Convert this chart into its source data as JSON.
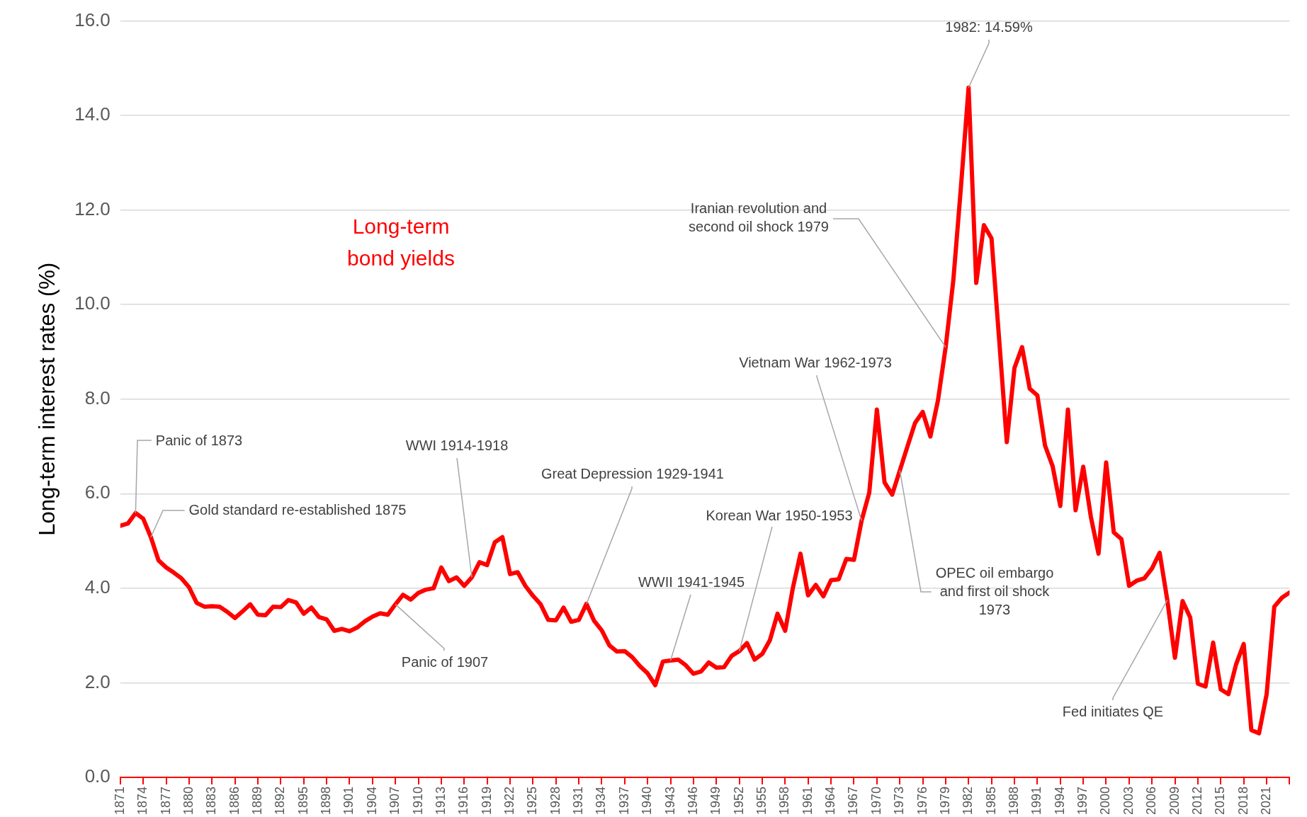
{
  "chart_data": {
    "type": "line",
    "ylabel": "Long-term interest rates (%)",
    "xlim": [
      1871,
      2024
    ],
    "xticks": [
      1871,
      1874,
      1877,
      1880,
      1883,
      1886,
      1889,
      1892,
      1895,
      1898,
      1901,
      1904,
      1907,
      1910,
      1913,
      1916,
      1919,
      1922,
      1925,
      1928,
      1931,
      1934,
      1937,
      1940,
      1943,
      1946,
      1949,
      1952,
      1955,
      1958,
      1961,
      1964,
      1967,
      1970,
      1973,
      1976,
      1979,
      1982,
      1985,
      1988,
      1991,
      1994,
      1997,
      2000,
      2003,
      2006,
      2009,
      2012,
      2015,
      2018,
      2021,
      {
        "value": 2024,
        "label": null
      }
    ],
    "ylim": [
      0,
      16
    ],
    "yticks": [
      {
        "value": 0,
        "label": "0.0"
      },
      {
        "value": 2,
        "label": "2.0"
      },
      {
        "value": 4,
        "label": "4.0"
      },
      {
        "value": 6,
        "label": "6.0"
      },
      {
        "value": 8,
        "label": "8.0"
      },
      {
        "value": 10,
        "label": "10.0"
      },
      {
        "value": 12,
        "label": "12.0"
      },
      {
        "value": 14,
        "label": "14.0"
      },
      {
        "value": 16,
        "label": "16.0"
      }
    ],
    "grid": "y",
    "marker": "none",
    "line_style": "solid",
    "series": [
      {
        "name": "Long-term bond yields",
        "color": "#ff0000",
        "x": [
          1871,
          1872,
          1873,
          1874,
          1875,
          1876,
          1877,
          1878,
          1879,
          1880,
          1881,
          1882,
          1883,
          1884,
          1885,
          1886,
          1887,
          1888,
          1889,
          1890,
          1891,
          1892,
          1893,
          1894,
          1895,
          1896,
          1897,
          1898,
          1899,
          1900,
          1901,
          1902,
          1903,
          1904,
          1905,
          1906,
          1907,
          1908,
          1909,
          1910,
          1911,
          1912,
          1913,
          1914,
          1915,
          1916,
          1917,
          1918,
          1919,
          1920,
          1921,
          1922,
          1923,
          1924,
          1925,
          1926,
          1927,
          1928,
          1929,
          1930,
          1931,
          1932,
          1933,
          1934,
          1935,
          1936,
          1937,
          1938,
          1939,
          1940,
          1941,
          1942,
          1943,
          1944,
          1945,
          1946,
          1947,
          1948,
          1949,
          1950,
          1951,
          1952,
          1953,
          1954,
          1955,
          1956,
          1957,
          1958,
          1959,
          1960,
          1961,
          1962,
          1963,
          1964,
          1965,
          1966,
          1967,
          1968,
          1969,
          1970,
          1971,
          1972,
          1973,
          1974,
          1975,
          1976,
          1977,
          1978,
          1979,
          1980,
          1981,
          1982,
          1983,
          1984,
          1985,
          1986,
          1987,
          1988,
          1989,
          1990,
          1991,
          1992,
          1993,
          1994,
          1995,
          1996,
          1997,
          1998,
          1999,
          2000,
          2001,
          2002,
          2003,
          2004,
          2005,
          2006,
          2007,
          2008,
          2009,
          2010,
          2011,
          2012,
          2013,
          2014,
          2015,
          2016,
          2017,
          2018,
          2019,
          2020,
          2021,
          2022,
          2023,
          2024
        ],
        "values": [
          5.32,
          5.37,
          5.59,
          5.47,
          5.08,
          4.59,
          4.44,
          4.33,
          4.21,
          4.02,
          3.69,
          3.61,
          3.62,
          3.61,
          3.5,
          3.37,
          3.51,
          3.66,
          3.44,
          3.43,
          3.61,
          3.6,
          3.75,
          3.7,
          3.46,
          3.59,
          3.39,
          3.34,
          3.1,
          3.14,
          3.09,
          3.17,
          3.3,
          3.4,
          3.47,
          3.44,
          3.66,
          3.86,
          3.76,
          3.9,
          3.97,
          4.0,
          4.44,
          4.15,
          4.23,
          4.05,
          4.23,
          4.55,
          4.49,
          4.97,
          5.08,
          4.3,
          4.34,
          4.05,
          3.84,
          3.66,
          3.33,
          3.32,
          3.59,
          3.29,
          3.33,
          3.67,
          3.31,
          3.11,
          2.79,
          2.66,
          2.67,
          2.54,
          2.35,
          2.2,
          1.95,
          2.45,
          2.47,
          2.49,
          2.37,
          2.19,
          2.24,
          2.43,
          2.32,
          2.33,
          2.57,
          2.67,
          2.84,
          2.49,
          2.61,
          2.9,
          3.46,
          3.1,
          4.0,
          4.73,
          3.85,
          4.07,
          3.83,
          4.17,
          4.19,
          4.62,
          4.6,
          5.43,
          6.02,
          7.78,
          6.24,
          5.98,
          6.49,
          7.0,
          7.5,
          7.73,
          7.21,
          7.98,
          9.1,
          10.51,
          12.49,
          14.59,
          10.46,
          11.68,
          11.4,
          9.26,
          7.09,
          8.66,
          9.1,
          8.22,
          8.08,
          7.02,
          6.58,
          5.74,
          7.78,
          5.65,
          6.57,
          5.51,
          4.73,
          6.66,
          5.18,
          5.04,
          4.05,
          4.16,
          4.21,
          4.42,
          4.75,
          3.75,
          2.53,
          3.73,
          3.38,
          1.98,
          1.92,
          2.85,
          1.86,
          1.76,
          2.39,
          2.82,
          1.0,
          0.93,
          1.76,
          3.61,
          3.8,
          3.91
        ]
      }
    ],
    "annotations": [
      {
        "text": "Panic of 1873",
        "x": 1873,
        "y": 5.59
      },
      {
        "text": "Gold standard re-established 1875",
        "x": 1875,
        "y": 5.08
      },
      {
        "text": "WWI 1914-1918",
        "x": 1917,
        "y": 4.23
      },
      {
        "text": "Panic of 1907",
        "x": 1907,
        "y": 3.66
      },
      {
        "text": "Great Depression 1929-1941",
        "x": 1932,
        "y": 3.67
      },
      {
        "text": "WWII 1941-1945",
        "x": 1943,
        "y": 2.47
      },
      {
        "text": "Korean War 1950-1953",
        "x": 1952,
        "y": 2.67
      },
      {
        "text": "Vietnam War 1962-1973",
        "x": 1968,
        "y": 5.43
      },
      {
        "text": "OPEC oil embargo and first oil shock 1973",
        "x": 1973,
        "y": 6.49
      },
      {
        "text": "Iranian revolution and second oil shock 1979",
        "x": 1979,
        "y": 9.1
      },
      {
        "text": "1982: 14.59%",
        "x": 1982,
        "y": 14.59
      },
      {
        "text": "Fed initiates QE",
        "x": 2008,
        "y": 3.75
      }
    ]
  }
}
